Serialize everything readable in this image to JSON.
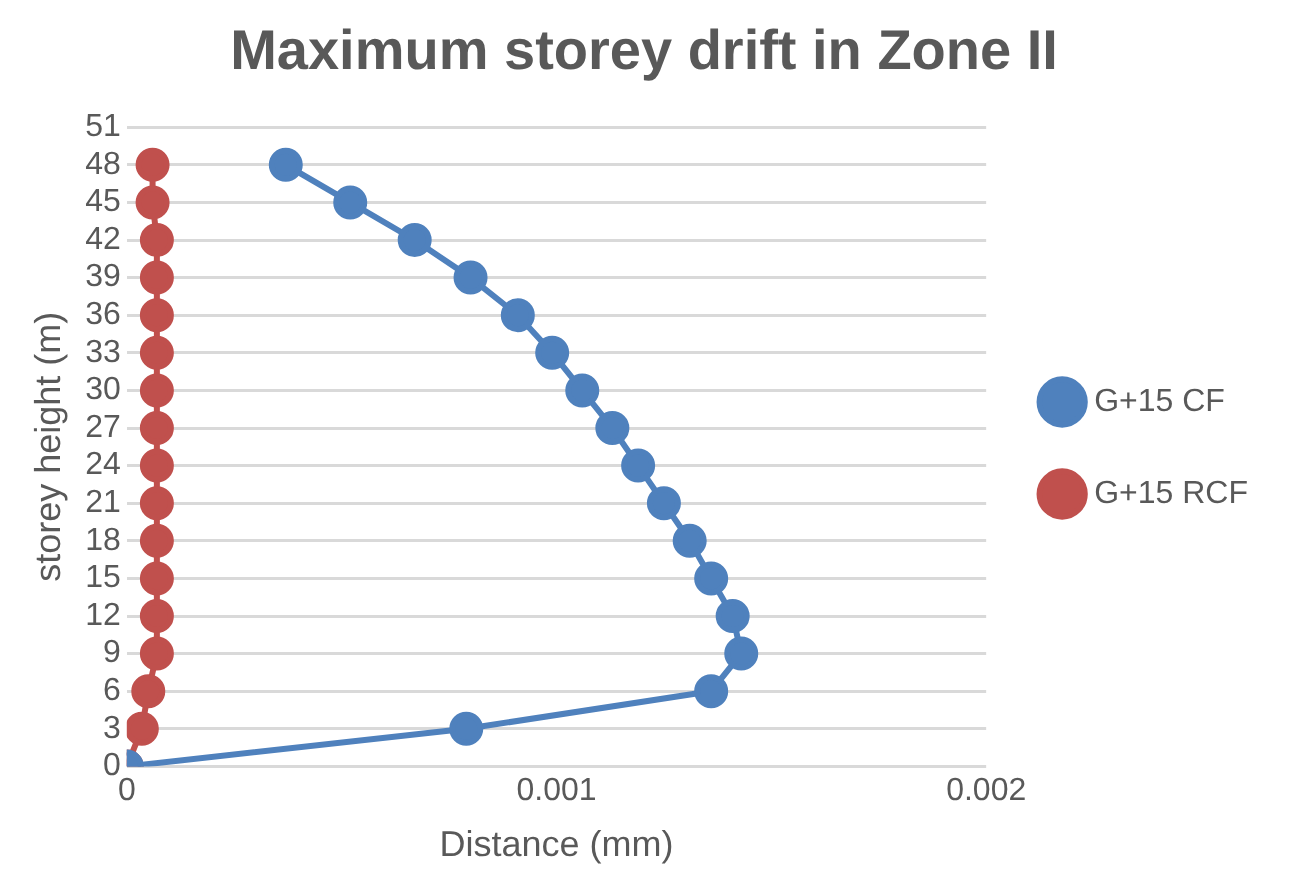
{
  "chart_data": {
    "type": "line",
    "title": "Maximum storey drift in Zone II",
    "xlabel": "Distance (mm)",
    "ylabel": "storey height (m)",
    "xlim": [
      0,
      0.002
    ],
    "xticks": [
      0,
      0.001,
      0.002
    ],
    "ylim": [
      0,
      51
    ],
    "yticks": [
      0,
      3,
      6,
      9,
      12,
      15,
      18,
      21,
      24,
      27,
      30,
      33,
      36,
      39,
      42,
      45,
      48,
      51
    ],
    "grid": "y",
    "legend": "right",
    "marker": "circle",
    "line_style": "solid",
    "series": [
      {
        "name": "G+15 CF",
        "color": "#4f81bd",
        "x": [
          0,
          0.00079,
          0.00136,
          0.00143,
          0.00141,
          0.00136,
          0.00131,
          0.00125,
          0.00119,
          0.00113,
          0.00106,
          0.00099,
          0.00091,
          0.0008,
          0.00067,
          0.00052,
          0.00037
        ],
        "values": [
          0,
          3,
          6,
          9,
          12,
          15,
          18,
          21,
          24,
          27,
          30,
          33,
          36,
          39,
          42,
          45,
          48
        ]
      },
      {
        "name": "G+15 RCF",
        "color": "#c0504d",
        "x": [
          0,
          3.5e-05,
          5e-05,
          7e-05,
          7e-05,
          7e-05,
          7e-05,
          7e-05,
          7e-05,
          7e-05,
          7e-05,
          7e-05,
          7e-05,
          7e-05,
          7e-05,
          6e-05,
          6e-05
        ],
        "values": [
          0,
          3,
          6,
          9,
          12,
          15,
          18,
          21,
          24,
          27,
          30,
          33,
          36,
          39,
          42,
          45,
          48
        ]
      }
    ]
  }
}
